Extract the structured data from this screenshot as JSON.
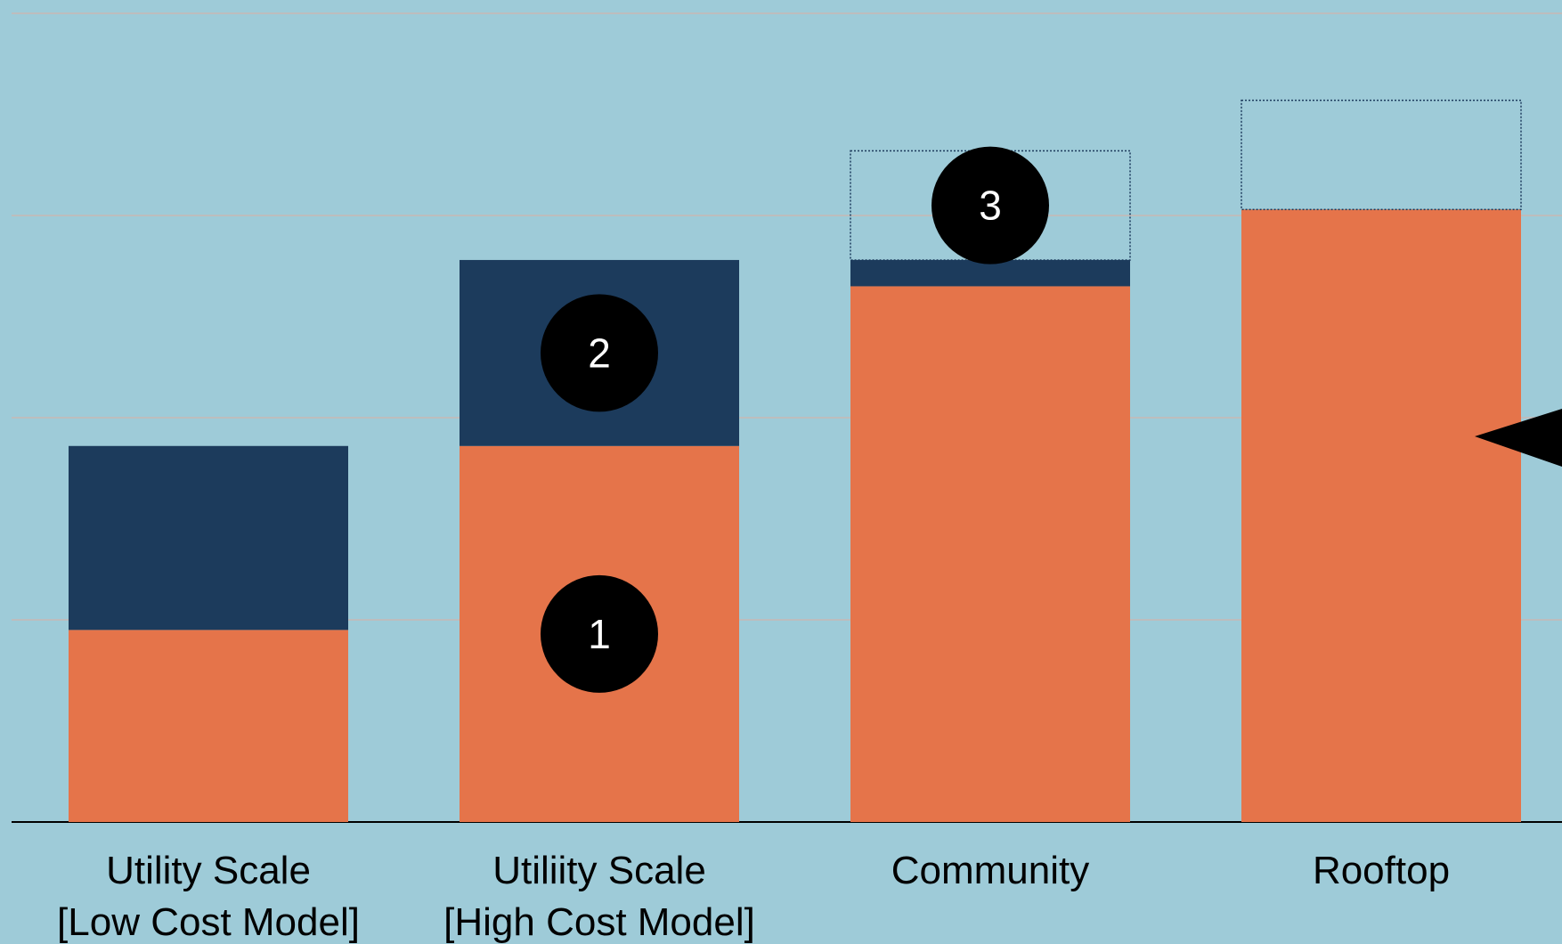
{
  "chart_data": {
    "type": "stacked_bar",
    "categories": [
      "Utility Scale\n[Low Cost Model]",
      "Utiliity Scale\n[High Cost Model]",
      "Community",
      "Rooftop"
    ],
    "series": [
      {
        "color": "#e5744a",
        "values": [
          0.95,
          1.86,
          2.65,
          3.03
        ]
      },
      {
        "color": "#1c3b5c",
        "values": [
          0.91,
          0.92,
          0.13,
          0
        ]
      },
      {
        "color": "none",
        "style": "dotted",
        "values": [
          0,
          0,
          0.54,
          0.54
        ]
      }
    ],
    "ylim": [
      0,
      4
    ],
    "yticks": [
      0,
      1,
      2,
      3,
      4
    ],
    "grid": true,
    "annotations": [
      {
        "text": "1",
        "category": 1,
        "series": 0
      },
      {
        "text": "2",
        "category": 1,
        "series": 1
      },
      {
        "text": "3",
        "category": 2,
        "series": 2
      }
    ]
  }
}
